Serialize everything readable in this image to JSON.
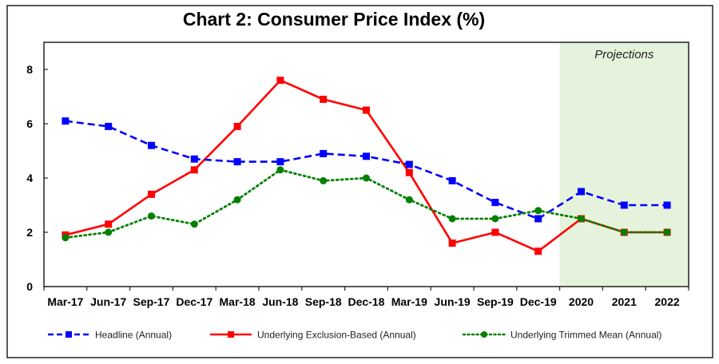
{
  "chart_data": {
    "type": "line",
    "title": "Chart 2: Consumer Price Index (%)",
    "xlabel": "",
    "ylabel": "",
    "ylim": [
      0,
      9
    ],
    "yticks": [
      0,
      2,
      4,
      6,
      8
    ],
    "grid": false,
    "legend_position": "bottom",
    "categories": [
      "Mar-17",
      "Jun-17",
      "Sep-17",
      "Dec-17",
      "Mar-18",
      "Jun-18",
      "Sep-18",
      "Dec-18",
      "Mar-19",
      "Jun-19",
      "Sep-19",
      "Dec-19",
      "2020",
      "2021",
      "2022"
    ],
    "projection": {
      "label": "Projections",
      "from_category": "2020",
      "to_category": "2022",
      "color": "#e6f3dc"
    },
    "series": [
      {
        "name": "Headline (Annual)",
        "color": "#0000ff",
        "line_style": "dashed",
        "marker": "square",
        "values": [
          6.1,
          5.9,
          5.2,
          4.7,
          4.6,
          4.6,
          4.9,
          4.8,
          4.5,
          3.9,
          3.1,
          2.5,
          3.5,
          3.0,
          3.0
        ]
      },
      {
        "name": "Underlying Exclusion-Based (Annual)",
        "color": "#ff0000",
        "line_style": "solid",
        "marker": "square",
        "values": [
          1.9,
          2.3,
          3.4,
          4.3,
          5.9,
          7.6,
          6.9,
          6.5,
          4.2,
          1.6,
          2.0,
          1.3,
          2.5,
          2.0,
          2.0
        ]
      },
      {
        "name": "Underlying Trimmed Mean (Annual)",
        "color": "#008000",
        "line_style": "dotted",
        "marker": "circle",
        "values": [
          1.8,
          2.0,
          2.6,
          2.3,
          3.2,
          4.3,
          3.9,
          4.0,
          3.2,
          2.5,
          2.5,
          2.8,
          2.5,
          2.0,
          2.0
        ]
      }
    ]
  }
}
